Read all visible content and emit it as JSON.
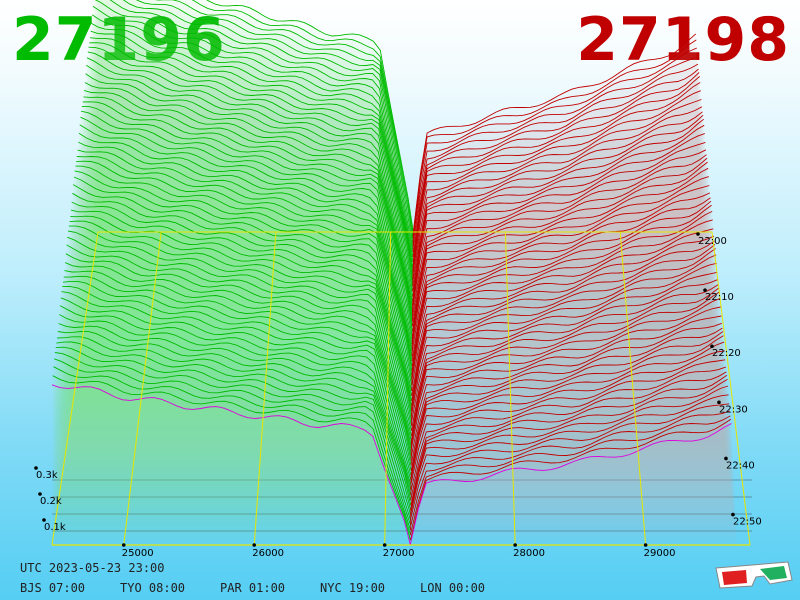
{
  "header": {
    "bid_price": "27196",
    "ask_price": "27198"
  },
  "colors": {
    "bid": "#00bb00",
    "ask": "#c00000",
    "latest_line": "#dd00dd",
    "grid": "#e6e600",
    "bid_fill": "#7fe07f",
    "ask_fill": "#d8a8a8"
  },
  "chart_data": {
    "type": "area",
    "title": "",
    "xlabel": "",
    "ylabel": "",
    "x_ticks": [
      "25000",
      "26000",
      "27000",
      "28000",
      "29000"
    ],
    "xlim": [
      24450,
      29800
    ],
    "depth_ticks": [
      "0.1k",
      "0.2k",
      "0.3k"
    ],
    "time_ticks": [
      "22:00",
      "22:10",
      "22:20",
      "22:30",
      "22:40",
      "22:50"
    ],
    "snapshots": 64,
    "bid_depth_profile": {
      "x": [
        24450,
        25000,
        25500,
        26000,
        26500,
        26900,
        27196
      ],
      "y": [
        0.34,
        0.31,
        0.29,
        0.27,
        0.25,
        0.24,
        0.0
      ]
    },
    "ask_depth_profile": {
      "x": [
        27198,
        27300,
        28000,
        28500,
        29000,
        29500,
        29700
      ],
      "y": [
        0.0,
        0.12,
        0.15,
        0.17,
        0.2,
        0.23,
        0.25
      ]
    },
    "legend": "none"
  },
  "clocks": {
    "utc": "UTC 2023-05-23 23:00",
    "cities": [
      "BJS 07:00",
      "TYO 08:00",
      "PAR 01:00",
      "NYC 19:00",
      "LON 00:00"
    ]
  },
  "icons": {
    "glasses": "3d-glasses-icon"
  }
}
